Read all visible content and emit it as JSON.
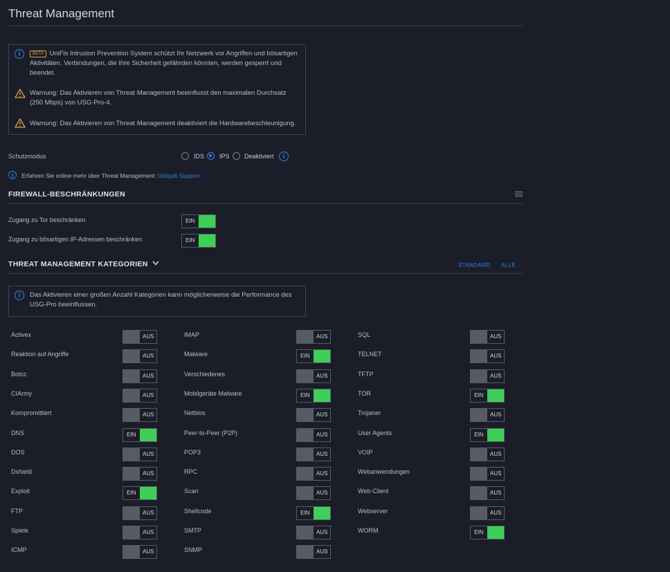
{
  "page": {
    "title": "Threat Management"
  },
  "notices": {
    "beta_badge": "BETA",
    "intro": "UniFis Intrusion Prevention System schützt Ihr Netzwerk vor Angriffen und bösartigen Aktivitäten. Verbindungen, die Ihre Sicherheit gefährden könnten, werden gesperrt und beendet.",
    "warning1": "Warnung: Das Aktivieren von Threat Management beeinflusst den maximalen Durchsatz (250 Mbps) von USG-Pro-4.",
    "warning2": "Warnung: Das Aktivieren von Threat Management deaktiviert die Hardwarebeschleunigung."
  },
  "protection": {
    "label": "Schutzmodus",
    "options": [
      {
        "label": "IDS",
        "selected": false
      },
      {
        "label": "IPS",
        "selected": true
      },
      {
        "label": "Deaktiviert",
        "selected": false
      }
    ]
  },
  "learn_more": {
    "text": "Erfahren Sie online mehr über Threat Management:",
    "link": "Ubiquiti Support"
  },
  "firewall": {
    "title": "FIREWALL-BESCHRÄNKUNGEN",
    "rows": [
      {
        "label": "Zugang zu Tor beschränken",
        "state": "EIN"
      },
      {
        "label": "Zugang zu bösartigen IP-Adressen beschränken",
        "state": "EIN"
      }
    ]
  },
  "categories": {
    "title": "THREAT MANAGEMENT KATEGORIEN",
    "standard_label": "STANDARD",
    "all_label": "ALLE",
    "notice": "Das Aktivieren einer großen Anzahl Kategorien kann möglicherweise die Performance des USG-Pro beeinflussen.",
    "on_label": "EIN",
    "off_label": "AUS",
    "columns": [
      [
        {
          "label": "Activex",
          "on": false
        },
        {
          "label": "Reaktion auf Angriffe",
          "on": false
        },
        {
          "label": "Botcc",
          "on": false
        },
        {
          "label": "CIArmy",
          "on": false
        },
        {
          "label": "Kompromittiert",
          "on": false
        },
        {
          "label": "DNS",
          "on": true
        },
        {
          "label": "DOS",
          "on": false
        },
        {
          "label": "Dshield",
          "on": false
        },
        {
          "label": "Exploit",
          "on": true
        },
        {
          "label": "FTP",
          "on": false
        },
        {
          "label": "Spiele",
          "on": false
        },
        {
          "label": "ICMP",
          "on": false
        }
      ],
      [
        {
          "label": "IMAP",
          "on": false
        },
        {
          "label": "Malware",
          "on": true
        },
        {
          "label": "Verschiedenes",
          "on": false
        },
        {
          "label": "Mobilgeräte Malware",
          "on": true
        },
        {
          "label": "Netbios",
          "on": false
        },
        {
          "label": "Peer-to-Peer (P2P)",
          "on": false
        },
        {
          "label": "POP3",
          "on": false
        },
        {
          "label": "RPC",
          "on": false
        },
        {
          "label": "Scan",
          "on": false
        },
        {
          "label": "Shellcode",
          "on": true
        },
        {
          "label": "SMTP",
          "on": false
        },
        {
          "label": "SNMP",
          "on": false
        }
      ],
      [
        {
          "label": "SQL",
          "on": false
        },
        {
          "label": "TELNET",
          "on": false
        },
        {
          "label": "TFTP",
          "on": false
        },
        {
          "label": "TOR",
          "on": true
        },
        {
          "label": "Trojaner",
          "on": false
        },
        {
          "label": "User Agents",
          "on": true
        },
        {
          "label": "VOIP",
          "on": false
        },
        {
          "label": "Webanwendungen",
          "on": false
        },
        {
          "label": "Web-Client",
          "on": false
        },
        {
          "label": "Webserver",
          "on": false
        },
        {
          "label": "WORM",
          "on": true
        }
      ]
    ]
  },
  "icons": [
    "info-icon",
    "warning-icon",
    "menu-icon",
    "chevron-down-icon"
  ],
  "colors": {
    "accent": "#2f80ed",
    "on": "#3ecf59",
    "off": "#575b66",
    "warning": "#e0a441"
  }
}
